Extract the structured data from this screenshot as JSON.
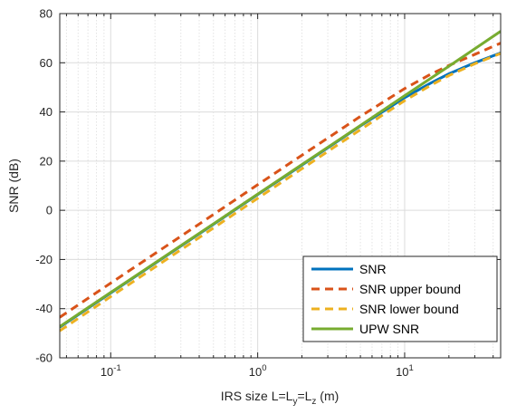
{
  "chart_data": {
    "type": "line",
    "title": "",
    "xlabel": {
      "prefix": "IRS size L=L",
      "sub1": "y",
      "mid": "=L",
      "sub2": "z",
      "suffix": " (m)"
    },
    "ylabel": "SNR (dB)",
    "xscale": "log",
    "xlim": [
      0.045,
      45
    ],
    "ylim": [
      -60,
      80
    ],
    "xticks": [
      {
        "value": 0.1,
        "base": "10",
        "exp": "-1"
      },
      {
        "value": 1,
        "base": "10",
        "exp": "0"
      },
      {
        "value": 10,
        "base": "10",
        "exp": "1"
      }
    ],
    "yticks": [
      -60,
      -40,
      -20,
      0,
      20,
      40,
      60,
      80
    ],
    "grid": true,
    "legend_position": "bottom-right",
    "series": [
      {
        "name": "SNR",
        "color": "#0072BD",
        "dash": "solid",
        "x": [
          0.045,
          0.1,
          0.2,
          0.5,
          1,
          2,
          5,
          10,
          15,
          20,
          30,
          45
        ],
        "y": [
          -47.5,
          -33.6,
          -21.6,
          -5.7,
          6.4,
          18.4,
          34.3,
          45.8,
          51.7,
          55.5,
          60.0,
          64.0
        ]
      },
      {
        "name": "SNR upper bound",
        "color": "#D95319",
        "dash": "dashed",
        "x": [
          0.045,
          0.1,
          0.2,
          0.5,
          1,
          2,
          5,
          10,
          15,
          20,
          30,
          45
        ],
        "y": [
          -43.5,
          -29.6,
          -17.6,
          -1.7,
          10.4,
          22.4,
          38.2,
          49.5,
          55.3,
          58.9,
          63.4,
          68.0
        ]
      },
      {
        "name": "SNR lower bound",
        "color": "#EDB120",
        "dash": "dashed",
        "x": [
          0.045,
          0.1,
          0.2,
          0.5,
          1,
          2,
          5,
          10,
          15,
          20,
          30,
          45
        ],
        "y": [
          -49.0,
          -35.1,
          -23.1,
          -7.2,
          4.9,
          16.9,
          32.8,
          44.6,
          50.8,
          54.8,
          59.6,
          63.8
        ]
      },
      {
        "name": "UPW SNR",
        "color": "#77AC30",
        "dash": "solid",
        "x": [
          0.045,
          0.1,
          0.2,
          0.5,
          1,
          2,
          5,
          10,
          20,
          45
        ],
        "y": [
          -47.3,
          -33.4,
          -21.4,
          -5.5,
          6.6,
          18.6,
          34.5,
          46.6,
          58.6,
          72.8
        ]
      }
    ]
  }
}
